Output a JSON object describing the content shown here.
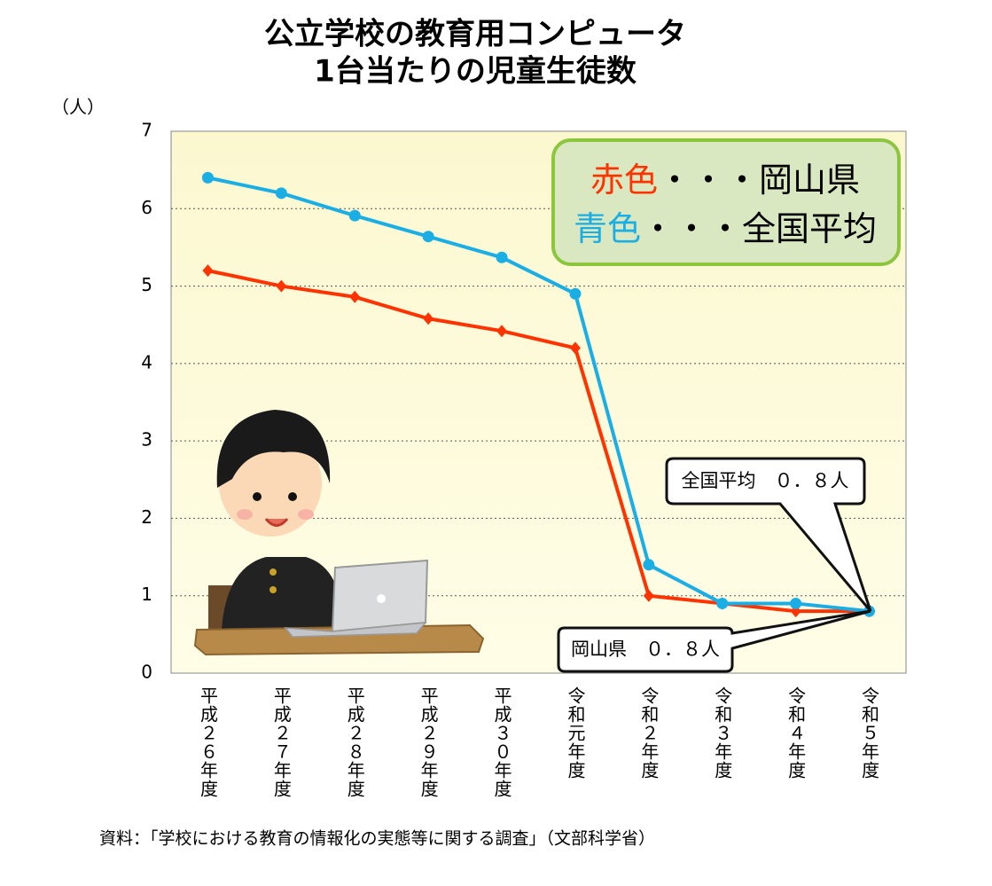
{
  "chart_data": {
    "type": "line",
    "title": [
      "公立学校の教育用コンピュータ",
      "1台当たりの児童生徒数"
    ],
    "y_unit": "（人）",
    "categories": [
      "平成２６年度",
      "平成２７年度",
      "平成２８年度",
      "平成２９年度",
      "平成３０年度",
      "令和元年度",
      "令和２年度",
      "令和３年度",
      "令和４年度",
      "令和５年度"
    ],
    "series": [
      {
        "name": "岡山県",
        "color": "#ff3300",
        "marker": "diamond",
        "values": [
          5.2,
          5.0,
          4.86,
          4.58,
          4.42,
          4.2,
          1.0,
          0.9,
          0.8,
          0.8
        ]
      },
      {
        "name": "全国平均",
        "color": "#1aaee5",
        "marker": "circle",
        "values": [
          6.4,
          6.2,
          5.91,
          5.64,
          5.37,
          4.9,
          1.4,
          0.9,
          0.9,
          0.8
        ]
      }
    ],
    "legend_labels": [
      "赤色",
      "青色"
    ],
    "legend_separator": "・・・",
    "annotations": [
      "全国平均　０．８人",
      "岡山県　０．８人"
    ],
    "ylim": [
      0,
      7
    ],
    "yticks": [
      0,
      1,
      2,
      3,
      4,
      5,
      6,
      7
    ],
    "grid": true,
    "source": "資料：「学校における教育の情報化の実態等に関する調査」（文部科学省）"
  }
}
